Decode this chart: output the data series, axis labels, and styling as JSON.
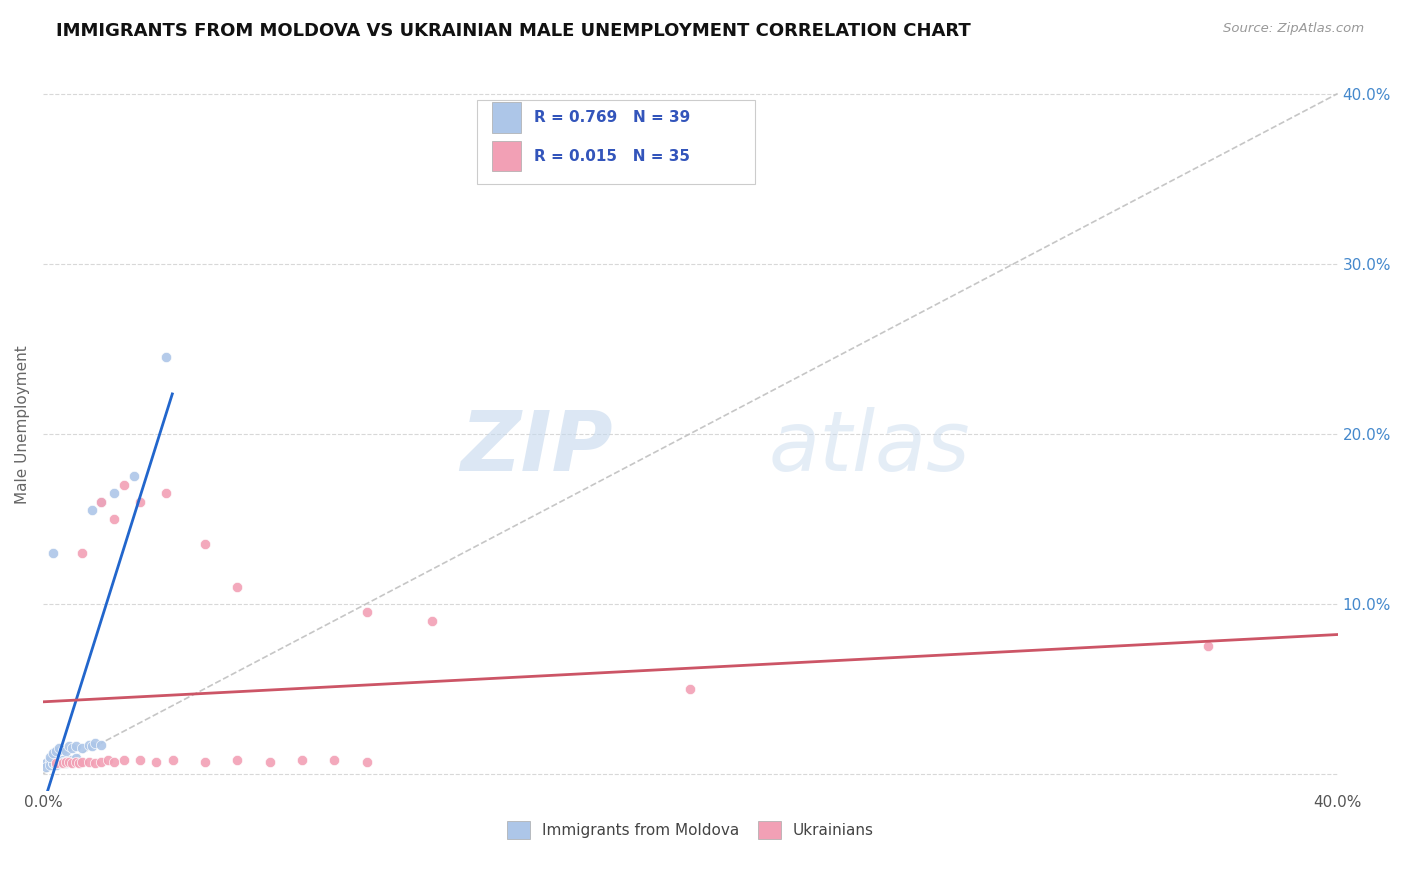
{
  "title": "IMMIGRANTS FROM MOLDOVA VS UKRAINIAN MALE UNEMPLOYMENT CORRELATION CHART",
  "source": "Source: ZipAtlas.com",
  "ylabel": "Male Unemployment",
  "watermark_zip": "ZIP",
  "watermark_atlas": "atlas",
  "xlim": [
    0.0,
    0.4
  ],
  "ylim": [
    -0.01,
    0.42
  ],
  "moldova_R": "0.769",
  "moldova_N": "39",
  "ukraine_R": "0.015",
  "ukraine_N": "35",
  "moldova_color": "#adc6e8",
  "ukraine_color": "#f2a0b5",
  "moldova_line_color": "#2266cc",
  "ukraine_line_color": "#cc5566",
  "diag_line_color": "#c0c0c0",
  "legend_R_color": "#3355bb",
  "moldova_scatter": [
    [
      0.001,
      0.006
    ],
    [
      0.001,
      0.004
    ],
    [
      0.002,
      0.008
    ],
    [
      0.002,
      0.005
    ],
    [
      0.003,
      0.007
    ],
    [
      0.003,
      0.006
    ],
    [
      0.003,
      0.006
    ],
    [
      0.004,
      0.007
    ],
    [
      0.004,
      0.005
    ],
    [
      0.005,
      0.008
    ],
    [
      0.005,
      0.007
    ],
    [
      0.005,
      0.006
    ],
    [
      0.006,
      0.008
    ],
    [
      0.006,
      0.007
    ],
    [
      0.007,
      0.007
    ],
    [
      0.007,
      0.006
    ],
    [
      0.008,
      0.008
    ],
    [
      0.009,
      0.008
    ],
    [
      0.01,
      0.009
    ],
    [
      0.002,
      0.01
    ],
    [
      0.003,
      0.012
    ],
    [
      0.004,
      0.013
    ],
    [
      0.005,
      0.015
    ],
    [
      0.006,
      0.014
    ],
    [
      0.007,
      0.013
    ],
    [
      0.008,
      0.016
    ],
    [
      0.009,
      0.015
    ],
    [
      0.01,
      0.016
    ],
    [
      0.012,
      0.015
    ],
    [
      0.014,
      0.017
    ],
    [
      0.015,
      0.016
    ],
    [
      0.016,
      0.018
    ],
    [
      0.018,
      0.017
    ],
    [
      0.003,
      0.13
    ],
    [
      0.015,
      0.155
    ],
    [
      0.018,
      0.16
    ],
    [
      0.022,
      0.165
    ],
    [
      0.028,
      0.175
    ],
    [
      0.038,
      0.245
    ]
  ],
  "ukraine_scatter": [
    [
      0.004,
      0.006
    ],
    [
      0.006,
      0.006
    ],
    [
      0.007,
      0.007
    ],
    [
      0.008,
      0.007
    ],
    [
      0.009,
      0.006
    ],
    [
      0.01,
      0.007
    ],
    [
      0.011,
      0.006
    ],
    [
      0.012,
      0.007
    ],
    [
      0.014,
      0.007
    ],
    [
      0.016,
      0.006
    ],
    [
      0.018,
      0.007
    ],
    [
      0.02,
      0.008
    ],
    [
      0.022,
      0.007
    ],
    [
      0.025,
      0.008
    ],
    [
      0.03,
      0.008
    ],
    [
      0.035,
      0.007
    ],
    [
      0.04,
      0.008
    ],
    [
      0.05,
      0.007
    ],
    [
      0.06,
      0.008
    ],
    [
      0.07,
      0.007
    ],
    [
      0.08,
      0.008
    ],
    [
      0.09,
      0.008
    ],
    [
      0.1,
      0.007
    ],
    [
      0.012,
      0.13
    ],
    [
      0.018,
      0.16
    ],
    [
      0.022,
      0.15
    ],
    [
      0.025,
      0.17
    ],
    [
      0.03,
      0.16
    ],
    [
      0.038,
      0.165
    ],
    [
      0.05,
      0.135
    ],
    [
      0.06,
      0.11
    ],
    [
      0.1,
      0.095
    ],
    [
      0.12,
      0.09
    ],
    [
      0.2,
      0.05
    ],
    [
      0.36,
      0.075
    ]
  ],
  "background_color": "#ffffff",
  "grid_color": "#d8d8d8"
}
